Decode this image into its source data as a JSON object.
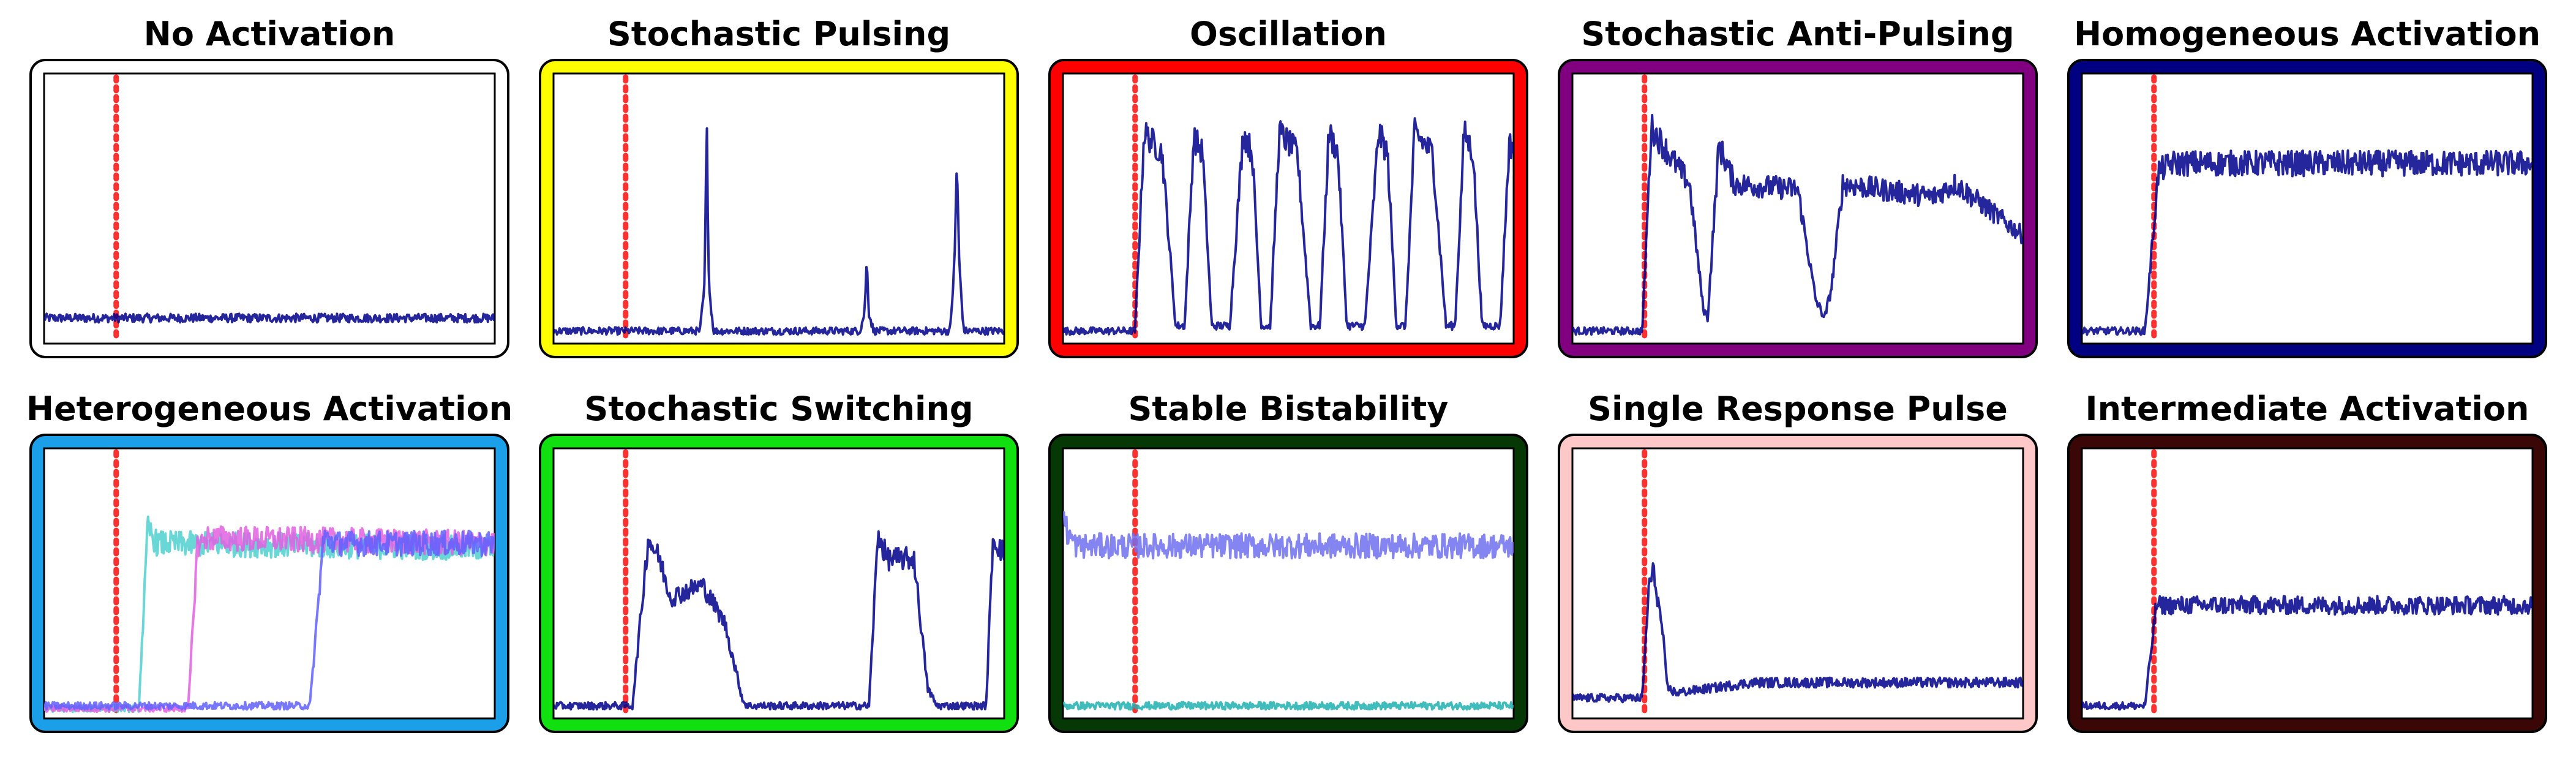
{
  "chart_data": [
    {
      "type": "line",
      "title": "No Activation",
      "frame_color": "#ffffff",
      "series": [
        {
          "color": "#00008b",
          "style": "noisy",
          "t": [
            0,
            1
          ],
          "y": [
            0.08,
            0.08
          ]
        }
      ]
    },
    {
      "type": "line",
      "title": "Stochastic Pulsing",
      "frame_color": "#ffff00",
      "series": [
        {
          "color": "#00008b",
          "style": "noisy",
          "t": [
            0,
            0.325,
            0.335,
            0.34,
            0.345,
            0.355,
            0.68,
            0.69,
            0.695,
            0.7,
            0.71,
            0.88,
            0.89,
            0.895,
            0.9,
            0.91,
            1
          ],
          "y": [
            0.03,
            0.03,
            0.2,
            0.82,
            0.2,
            0.03,
            0.03,
            0.1,
            0.3,
            0.1,
            0.03,
            0.03,
            0.3,
            0.7,
            0.3,
            0.03,
            0.03
          ]
        }
      ]
    },
    {
      "type": "line",
      "title": "Oscillation",
      "frame_color": "#ff0000",
      "series": [
        {
          "color": "#00008b",
          "style": "noisy",
          "t": [
            0,
            0.16,
            0.18,
            0.22,
            0.25,
            0.27,
            0.29,
            0.31,
            0.33,
            0.37,
            0.4,
            0.42,
            0.44,
            0.46,
            0.48,
            0.52,
            0.55,
            0.57,
            0.59,
            0.61,
            0.63,
            0.67,
            0.7,
            0.72,
            0.74,
            0.76,
            0.78,
            0.82,
            0.85,
            0.87,
            0.89,
            0.91,
            0.93,
            0.97,
            0.99,
            1
          ],
          "y": [
            0.03,
            0.03,
            0.8,
            0.72,
            0.05,
            0.05,
            0.78,
            0.72,
            0.05,
            0.05,
            0.8,
            0.72,
            0.05,
            0.05,
            0.8,
            0.72,
            0.05,
            0.05,
            0.8,
            0.72,
            0.05,
            0.05,
            0.8,
            0.72,
            0.05,
            0.05,
            0.8,
            0.72,
            0.05,
            0.05,
            0.8,
            0.72,
            0.05,
            0.05,
            0.75,
            0.75
          ]
        }
      ]
    },
    {
      "type": "line",
      "title": "Stochastic Anti-Pulsing",
      "frame_color": "#800080",
      "series": [
        {
          "color": "#00008b",
          "style": "noisy",
          "t": [
            0,
            0.155,
            0.175,
            0.22,
            0.26,
            0.29,
            0.3,
            0.325,
            0.36,
            0.5,
            0.54,
            0.56,
            0.575,
            0.6,
            0.8,
            0.85,
            1
          ],
          "y": [
            0.03,
            0.03,
            0.82,
            0.7,
            0.6,
            0.12,
            0.08,
            0.75,
            0.6,
            0.58,
            0.15,
            0.08,
            0.2,
            0.6,
            0.55,
            0.6,
            0.4
          ]
        }
      ]
    },
    {
      "type": "line",
      "title": "Homogeneous Activation",
      "frame_color": "#000080",
      "series": [
        {
          "color": "#00008b",
          "style": "noisy",
          "t": [
            0,
            0.14,
            0.17,
            0.2,
            1
          ],
          "y": [
            0.03,
            0.03,
            0.65,
            0.68,
            0.68
          ]
        }
      ]
    },
    {
      "type": "line",
      "title": "Heterogeneous Activation",
      "frame_color": "#1a9fe8",
      "series": [
        {
          "color": "#50d0d0",
          "style": "noisy",
          "t": [
            0,
            0.21,
            0.23,
            0.25,
            1
          ],
          "y": [
            0.02,
            0.02,
            0.72,
            0.66,
            0.64
          ]
        },
        {
          "color": "#e060e0",
          "style": "noisy",
          "t": [
            0,
            0.32,
            0.34,
            0.36,
            1
          ],
          "y": [
            0.02,
            0.02,
            0.65,
            0.68,
            0.66
          ]
        },
        {
          "color": "#6060ff",
          "style": "noisy",
          "t": [
            0,
            0.59,
            0.62,
            0.65,
            1
          ],
          "y": [
            0.03,
            0.03,
            0.68,
            0.66,
            0.66
          ]
        }
      ]
    },
    {
      "type": "line",
      "title": "Stochastic Switching",
      "frame_color": "#10e010",
      "series": [
        {
          "color": "#00008b",
          "style": "noisy",
          "t": [
            0,
            0.175,
            0.21,
            0.235,
            0.26,
            0.33,
            0.38,
            0.42,
            0.43,
            0.7,
            0.72,
            0.74,
            0.8,
            0.83,
            0.85,
            0.86,
            0.96,
            0.975,
            1
          ],
          "y": [
            0.03,
            0.03,
            0.68,
            0.6,
            0.45,
            0.5,
            0.35,
            0.05,
            0.03,
            0.03,
            0.7,
            0.6,
            0.6,
            0.1,
            0.03,
            0.03,
            0.03,
            0.68,
            0.62
          ]
        }
      ]
    },
    {
      "type": "line",
      "title": "Stable Bistability",
      "frame_color": "#053805",
      "series": [
        {
          "color": "#7070f0",
          "style": "noisy",
          "t": [
            0,
            0.01,
            0.03,
            0.15,
            1
          ],
          "y": [
            0.78,
            0.7,
            0.65,
            0.65,
            0.65
          ]
        },
        {
          "color": "#20b0b0",
          "style": "noisy",
          "t": [
            0,
            1
          ],
          "y": [
            0.03,
            0.03
          ]
        }
      ]
    },
    {
      "type": "line",
      "title": "Single Response Pulse",
      "frame_color": "#ffc8c8",
      "series": [
        {
          "color": "#00008b",
          "style": "noisy",
          "t": [
            0,
            0.155,
            0.17,
            0.18,
            0.2,
            0.21,
            0.23,
            0.4,
            1
          ],
          "y": [
            0.06,
            0.06,
            0.5,
            0.55,
            0.32,
            0.1,
            0.08,
            0.12,
            0.12
          ]
        }
      ]
    },
    {
      "type": "line",
      "title": "Intermediate Activation",
      "frame_color": "#3a0606",
      "series": [
        {
          "color": "#00008b",
          "style": "noisy",
          "t": [
            0,
            0.14,
            0.165,
            0.2,
            1
          ],
          "y": [
            0.03,
            0.03,
            0.42,
            0.42,
            0.42
          ]
        }
      ]
    }
  ]
}
